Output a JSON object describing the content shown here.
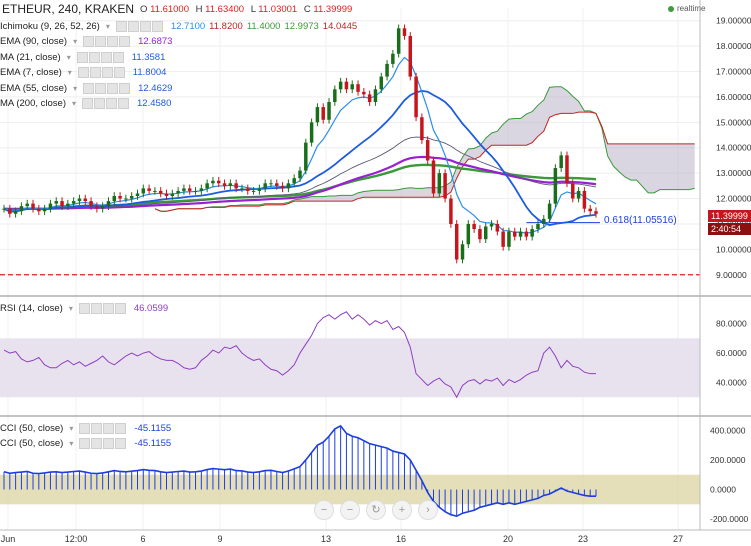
{
  "header": {
    "symbol": "ETHEUR, 240, KRAKEN",
    "o_label": "O",
    "o_value": "11.61000",
    "h_label": "H",
    "h_value": "11.63400",
    "l_label": "L",
    "l_value": "11.03001",
    "c_label": "C",
    "c_value": "11.39999",
    "realtime": "realtime"
  },
  "legend": [
    {
      "name": "Ichimoku (9, 26, 52, 26)",
      "values": [
        "12.7100",
        "11.8200",
        "11.4000",
        "12.9973",
        "14.0445"
      ],
      "colors": [
        "#2a8ee8",
        "#c62222",
        "#3a9a3a",
        "#3a9a3a",
        "#c62222"
      ]
    },
    {
      "name": "EMA (90, close)",
      "values": [
        "12.6873"
      ],
      "colors": [
        "#9a1fd1"
      ]
    },
    {
      "name": "MA (21, close)",
      "values": [
        "11.3581"
      ],
      "colors": [
        "#1c5ce0"
      ]
    },
    {
      "name": "EMA (7, close)",
      "values": [
        "11.8004"
      ],
      "colors": [
        "#1c5ce0"
      ]
    },
    {
      "name": "EMA (55, close)",
      "values": [
        "12.4629"
      ],
      "colors": [
        "#1c5ce0"
      ]
    },
    {
      "name": "MA (200, close)",
      "values": [
        "12.4580"
      ],
      "colors": [
        "#1c5ce0"
      ]
    }
  ],
  "rsi_legend": {
    "name": "RSI (14, close)",
    "value": "46.0599"
  },
  "cci_legend": [
    {
      "name": "CCI (50, close)",
      "value": "-45.1155"
    },
    {
      "name": "CCI (50, close)",
      "value": "-45.1155"
    }
  ],
  "price_tags": {
    "last": "11.39999",
    "countdown": "2:40:54"
  },
  "fib_label": "0.618(11.05516)",
  "nav_icons": [
    "zoom-out",
    "zoom-in",
    "reset",
    "scroll-right",
    "scroll-end"
  ],
  "colors": {
    "up": "#1a6e1a",
    "down": "#c4161c",
    "ema90": "#9a1fd1",
    "ma200": "#3a9a3a",
    "ma21": "#1c5ce0",
    "ema7": "#2a8ee8",
    "rsi": "#8f3fbf",
    "cci": "#1c3ee0",
    "cloud_fill": "#b9b3c9",
    "support": "#e0201b"
  },
  "chart_data": [
    {
      "type": "candlestick",
      "title": "ETHEUR, 240, KRAKEN",
      "x_ticks": [
        "Jun",
        "12:00",
        "6",
        "9",
        "13",
        "16",
        "20",
        "23",
        "27"
      ],
      "y_ticks": [
        9.0,
        10.0,
        11.0,
        12.0,
        13.0,
        14.0,
        15.0,
        16.0,
        17.0,
        18.0,
        19.0
      ],
      "ylim": [
        8.4,
        19.5
      ],
      "close": [
        11.6,
        11.4,
        11.5,
        11.7,
        11.8,
        11.6,
        11.5,
        11.6,
        11.8,
        11.9,
        11.7,
        11.8,
        11.9,
        12.0,
        11.9,
        11.7,
        11.6,
        11.7,
        11.9,
        12.1,
        12.0,
        12.0,
        12.1,
        12.2,
        12.4,
        12.3,
        12.3,
        12.2,
        12.1,
        12.2,
        12.3,
        12.4,
        12.3,
        12.3,
        12.4,
        12.6,
        12.7,
        12.6,
        12.5,
        12.6,
        12.4,
        12.4,
        12.3,
        12.3,
        12.4,
        12.6,
        12.6,
        12.5,
        12.4,
        12.6,
        12.8,
        13.1,
        14.2,
        15.0,
        15.6,
        15.1,
        15.8,
        16.3,
        16.6,
        16.3,
        16.5,
        16.2,
        16.1,
        15.8,
        16.3,
        16.8,
        17.3,
        17.7,
        18.7,
        18.4,
        16.8,
        15.2,
        14.3,
        13.5,
        12.2,
        13.0,
        12.0,
        11.0,
        9.6,
        10.2,
        11.0,
        10.8,
        10.4,
        10.9,
        11.0,
        10.7,
        10.1,
        10.7,
        10.5,
        10.7,
        10.5,
        10.8,
        11.0,
        11.2,
        11.8,
        13.2,
        13.7,
        12.6,
        12.0,
        12.3,
        11.6,
        11.5,
        11.4
      ],
      "rsi_ticks": [
        40,
        60,
        80
      ],
      "rsi_band": [
        30,
        70
      ],
      "rsi_ylim": [
        20,
        96
      ],
      "rsi": [
        62,
        60,
        61,
        56,
        54,
        55,
        57,
        52,
        50,
        50,
        53,
        55,
        52,
        54,
        51,
        53,
        55,
        58,
        54,
        52,
        55,
        58,
        60,
        58,
        60,
        61,
        58,
        56,
        55,
        55,
        53,
        50,
        49,
        50,
        55,
        58,
        62,
        60,
        64,
        63,
        65,
        60,
        57,
        55,
        56,
        52,
        49,
        48,
        45,
        48,
        52,
        60,
        66,
        72,
        80,
        84,
        86,
        83,
        86,
        88,
        83,
        86,
        83,
        79,
        82,
        80,
        82,
        76,
        78,
        74,
        64,
        46,
        42,
        38,
        41,
        43,
        39,
        37,
        30,
        38,
        41,
        42,
        39,
        42,
        41,
        43,
        38,
        42,
        40,
        42,
        45,
        47,
        48,
        60,
        64,
        58,
        50,
        55,
        51,
        50,
        47,
        46,
        46
      ],
      "cci_ticks": [
        -200,
        0,
        200,
        400
      ],
      "cci_band": [
        -100,
        100
      ],
      "cci_ylim": [
        -260,
        470
      ],
      "cci": [
        120,
        110,
        115,
        118,
        122,
        110,
        108,
        112,
        118,
        120,
        115,
        118,
        122,
        125,
        118,
        110,
        108,
        112,
        120,
        128,
        122,
        120,
        124,
        128,
        135,
        130,
        128,
        120,
        115,
        118,
        122,
        125,
        118,
        120,
        125,
        135,
        142,
        138,
        134,
        138,
        128,
        126,
        118,
        115,
        120,
        128,
        130,
        122,
        115,
        125,
        140,
        155,
        200,
        250,
        300,
        320,
        360,
        410,
        430,
        380,
        360,
        350,
        330,
        310,
        300,
        290,
        280,
        260,
        250,
        240,
        200,
        130,
        60,
        -20,
        -80,
        -120,
        -150,
        -170,
        -180,
        -160,
        -150,
        -140,
        -120,
        -110,
        -100,
        -90,
        -100,
        -90,
        -100,
        -90,
        -80,
        -70,
        -60,
        -40,
        -30,
        -10,
        10,
        -10,
        -20,
        -30,
        -40,
        -45,
        -45
      ]
    }
  ]
}
